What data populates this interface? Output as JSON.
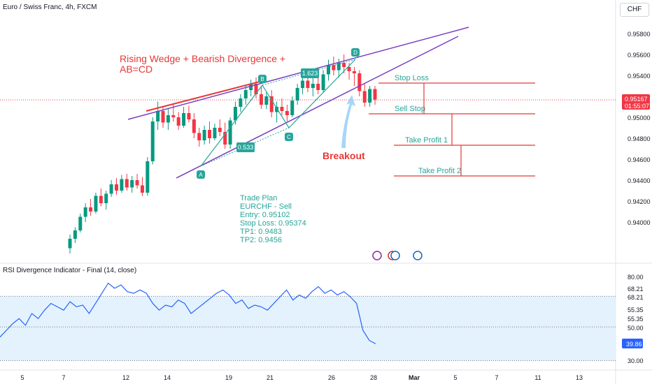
{
  "header": {
    "symbol_title": "Euro / Swiss Franc, 4h, FXCM",
    "currency": "CHF"
  },
  "annotations": {
    "pattern_title": [
      "Rising Wedge + Bearish Divergence +",
      "AB=CD"
    ],
    "breakout": "Breakout",
    "stop_loss": "Stop Loss",
    "sell_stop": "Sell Stop",
    "take_profit_1": "Take Profit 1",
    "take_profit_2": "Take Profit 2",
    "ratio_ab": "0.533",
    "ratio_cd": "1.623",
    "point_a": "A",
    "point_b": "B",
    "point_c": "C",
    "point_d": "D",
    "trade_plan": [
      "Trade Plan",
      "EURCHF - Sell",
      "Entry: 0.95102",
      "Stop Loss: 0.95374",
      "TP1: 0.9483",
      "TP2: 0.9456"
    ]
  },
  "price_badge": {
    "price": "0.95167",
    "countdown": "01:55:07",
    "color": "#f23645"
  },
  "rsi": {
    "title": "RSI Divergence Indicator - Final (14, close)",
    "current": "39.86",
    "band_upper": 68.21,
    "band_lower": 30.0,
    "mid": 50.0,
    "band_color": "#e3f2fd",
    "line_color": "#2962ff",
    "scale_labels": [
      "80.00",
      "68.21",
      "68.21",
      "55.35",
      "55.35",
      "50.00",
      "39.86",
      "30.00"
    ]
  },
  "colors": {
    "up": "#089981",
    "down": "#f23645",
    "wedge": "#7b3fbf",
    "rising_line": "#e53935",
    "cd_line": "#26a69a",
    "arrow": "#90caf9"
  },
  "chart_data": {
    "type": "candlestick",
    "symbol": "EURCHF",
    "timeframe": "4h",
    "price_axis_ticks": [
      0.958,
      0.956,
      0.954,
      0.952,
      0.95,
      0.948,
      0.946,
      0.944,
      0.942,
      0.94
    ],
    "price_axis_labels": [
      "0.95800",
      "0.95600",
      "0.95400",
      "0.95200",
      "0.95000",
      "0.94800",
      "0.94600",
      "0.94400",
      "0.94200",
      "0.94000"
    ],
    "x_tick_labels": [
      "5",
      "7",
      "12",
      "14",
      "19",
      "21",
      "26",
      "28",
      "Mar",
      "5",
      "7",
      "11",
      "13"
    ],
    "ohlc": [
      [
        0.9375,
        0.9388,
        0.937,
        0.9384
      ],
      [
        0.9384,
        0.9395,
        0.938,
        0.9392
      ],
      [
        0.9392,
        0.9408,
        0.939,
        0.9405
      ],
      [
        0.9405,
        0.9418,
        0.94,
        0.9414
      ],
      [
        0.9414,
        0.9422,
        0.9406,
        0.941
      ],
      [
        0.941,
        0.9428,
        0.9408,
        0.9425
      ],
      [
        0.9425,
        0.9432,
        0.9415,
        0.9418
      ],
      [
        0.9418,
        0.943,
        0.9412,
        0.9427
      ],
      [
        0.9427,
        0.944,
        0.9424,
        0.9436
      ],
      [
        0.9436,
        0.9442,
        0.9426,
        0.943
      ],
      [
        0.943,
        0.9445,
        0.9428,
        0.9441
      ],
      [
        0.9441,
        0.9446,
        0.943,
        0.9433
      ],
      [
        0.9433,
        0.9444,
        0.9428,
        0.944
      ],
      [
        0.944,
        0.9446,
        0.9432,
        0.9435
      ],
      [
        0.9435,
        0.9443,
        0.9425,
        0.9428
      ],
      [
        0.9428,
        0.9462,
        0.9425,
        0.9458
      ],
      [
        0.9458,
        0.95,
        0.9455,
        0.9496
      ],
      [
        0.9496,
        0.9515,
        0.9488,
        0.9506
      ],
      [
        0.9506,
        0.951,
        0.949,
        0.9495
      ],
      [
        0.9495,
        0.9508,
        0.9488,
        0.9502
      ],
      [
        0.9502,
        0.9512,
        0.9496,
        0.95
      ],
      [
        0.95,
        0.9505,
        0.9488,
        0.9492
      ],
      [
        0.9492,
        0.951,
        0.949,
        0.9504
      ],
      [
        0.9504,
        0.9511,
        0.9495,
        0.9498
      ],
      [
        0.9498,
        0.9504,
        0.948,
        0.9485
      ],
      [
        0.9485,
        0.949,
        0.9472,
        0.9478
      ],
      [
        0.9478,
        0.9492,
        0.9474,
        0.9488
      ],
      [
        0.9488,
        0.9496,
        0.9475,
        0.948
      ],
      [
        0.948,
        0.9494,
        0.9478,
        0.949
      ],
      [
        0.949,
        0.9498,
        0.9482,
        0.9486
      ],
      [
        0.9486,
        0.9495,
        0.947,
        0.9474
      ],
      [
        0.9474,
        0.95,
        0.947,
        0.9497
      ],
      [
        0.9497,
        0.9515,
        0.9493,
        0.951
      ],
      [
        0.951,
        0.9522,
        0.9505,
        0.9518
      ],
      [
        0.9518,
        0.953,
        0.9512,
        0.9526
      ],
      [
        0.9526,
        0.9536,
        0.952,
        0.9532
      ],
      [
        0.9532,
        0.9538,
        0.9518,
        0.9522
      ],
      [
        0.9522,
        0.953,
        0.9508,
        0.9512
      ],
      [
        0.9512,
        0.9524,
        0.9508,
        0.952
      ],
      [
        0.952,
        0.9526,
        0.95,
        0.9505
      ],
      [
        0.9505,
        0.9515,
        0.9495,
        0.951
      ],
      [
        0.951,
        0.9518,
        0.9502,
        0.9506
      ],
      [
        0.9506,
        0.9512,
        0.9496,
        0.9502
      ],
      [
        0.9502,
        0.952,
        0.95,
        0.9516
      ],
      [
        0.9516,
        0.9532,
        0.9512,
        0.9528
      ],
      [
        0.9528,
        0.954,
        0.9522,
        0.9535
      ],
      [
        0.9535,
        0.9542,
        0.9524,
        0.9528
      ],
      [
        0.9528,
        0.9538,
        0.952,
        0.9532
      ],
      [
        0.9532,
        0.954,
        0.9522,
        0.9526
      ],
      [
        0.9526,
        0.9545,
        0.9524,
        0.9541
      ],
      [
        0.9541,
        0.9555,
        0.9535,
        0.955
      ],
      [
        0.955,
        0.9558,
        0.954,
        0.9545
      ],
      [
        0.9545,
        0.9556,
        0.9538,
        0.9552
      ],
      [
        0.9552,
        0.956,
        0.9542,
        0.9548
      ],
      [
        0.9548,
        0.9552,
        0.9536,
        0.9544
      ],
      [
        0.9544,
        0.9548,
        0.953,
        0.9542
      ],
      [
        0.9542,
        0.9545,
        0.952,
        0.9525
      ],
      [
        0.9525,
        0.9532,
        0.951,
        0.9514
      ],
      [
        0.9514,
        0.953,
        0.951,
        0.9527
      ],
      [
        0.9527,
        0.953,
        0.9512,
        0.9517
      ]
    ],
    "rsi_values": [
      44,
      48,
      52,
      55,
      51,
      58,
      55,
      60,
      64,
      62,
      60,
      65,
      62,
      63,
      58,
      64,
      70,
      76,
      73,
      75,
      71,
      70,
      72,
      70,
      64,
      60,
      63,
      62,
      66,
      64,
      58,
      61,
      64,
      67,
      70,
      72,
      69,
      64,
      66,
      61,
      63,
      62,
      60,
      64,
      68,
      72,
      66,
      69,
      67,
      71,
      74,
      70,
      72,
      69,
      71,
      68,
      64,
      48,
      42,
      40
    ],
    "rsi_scale": [
      30,
      80
    ]
  }
}
